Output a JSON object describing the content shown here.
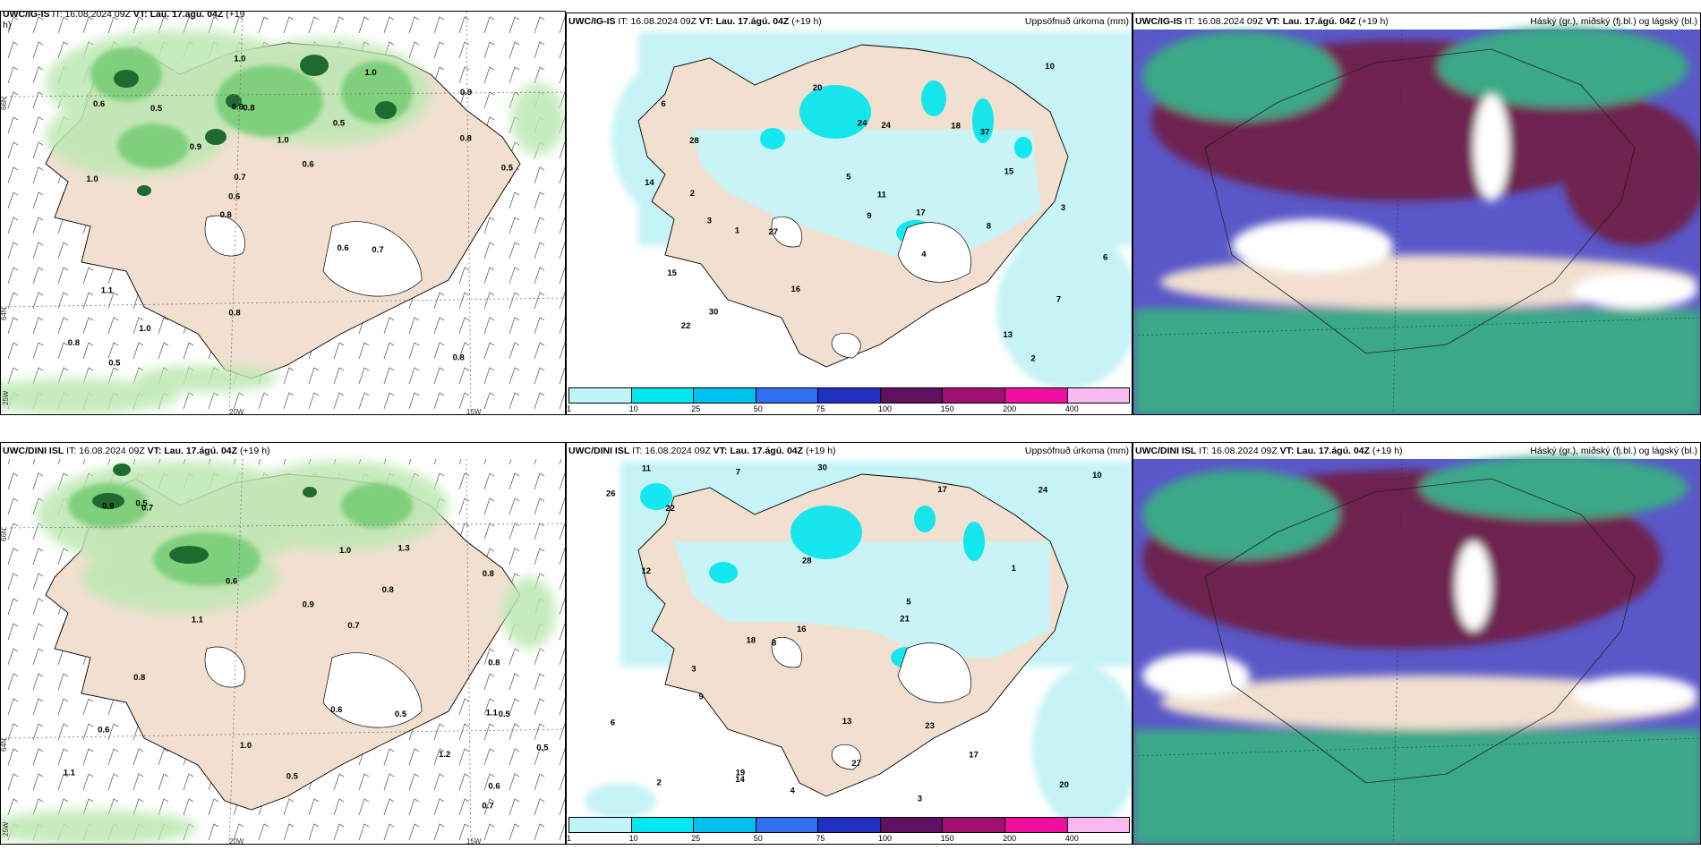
{
  "panels": {
    "p1": {
      "model": "UWC/IG-IS",
      "it_label": "IT:",
      "it": "16.08.2024 09Z",
      "vt_label": "VT:",
      "vt": "Lau. 17.ágú. 04Z",
      "lead": "(+19",
      "lead2": "h)"
    },
    "p2": {
      "model": "UWC/IG-IS",
      "it_label": "IT:",
      "it": "16.08.2024 09Z",
      "vt_label": "VT:",
      "vt": "Lau. 17.ágú. 04Z",
      "lead": "(+19 h)",
      "right_title": "Uppsöfnuð úrkoma (mm)"
    },
    "p3": {
      "model": "UWC/IG-IS",
      "it_label": "IT:",
      "it": "16.08.2024 09Z",
      "vt_label": "VT:",
      "vt": "Lau. 17.ágú. 04Z",
      "lead": "(+19 h)",
      "right_title": "Háský (gr.), miðský (fj.bl.) og lágský (bl.)"
    },
    "p4": {
      "model": "UWC/DINI ISL",
      "it_label": "IT:",
      "it": "16.08.2024 09Z",
      "vt_label": "VT:",
      "vt": "Lau. 17.ágú. 04Z",
      "lead": "(+19 h)"
    },
    "p5": {
      "model": "UWC/DINI ISL",
      "it_label": "IT:",
      "it": "16.08.2024 09Z",
      "vt_label": "VT:",
      "vt": "Lau. 17.ágú. 04Z",
      "lead": "(+19 h)",
      "right_title": "Uppsöfnuð úrkoma (mm)"
    },
    "p6": {
      "model": "UWC/DINI ISL",
      "it_label": "IT:",
      "it": "16.08.2024 09Z",
      "vt_label": "VT:",
      "vt": "Lau. 17.ágú. 04Z",
      "lead": "(+19 h)",
      "right_title": "Háský (gr.), miðský (fj.bl.) og lágský (bl.)"
    }
  },
  "grid_labels": {
    "lat66": "66N",
    "lat64": "64N",
    "lon20": "20W",
    "lon15": "15W",
    "lon25": "25W"
  },
  "colorbar": {
    "labels": [
      "1",
      "10",
      "25",
      "50",
      "75",
      "100",
      "150",
      "200",
      "400"
    ],
    "colors": [
      "#bff5f8",
      "#00e8f0",
      "#00c0f0",
      "#3070f0",
      "#2030c0",
      "#601060",
      "#a01070",
      "#f010a0",
      "#f8b8f0"
    ]
  },
  "colors": {
    "land": "#f1e0d0",
    "sea": "#ffffff",
    "precip_light": "#c6f3f6",
    "precip_mid": "#00e6ee",
    "green_light": "#bde8b3",
    "green_mid": "#7fcf7c",
    "green_dark": "#1f6b2f",
    "high_cloud": "#6d2050",
    "mid_cloud": "#5550c8",
    "low_cloud": "#3aa888"
  },
  "p1_values": [
    "0.8",
    "1.0",
    "0.9",
    "0.8",
    "0.5",
    "0.5",
    "0.8",
    "1.0",
    "1.1",
    "0.9",
    "0.8",
    "1.0",
    "0.8",
    "0.6",
    "0.7",
    "0.6",
    "1.0",
    "0.5",
    "0.6",
    "0.8",
    "0.6",
    "0.8",
    "0.7",
    "0.5",
    "1.0"
  ],
  "p2_values": [
    "2",
    "3",
    "4",
    "6",
    "7",
    "28",
    "30",
    "27",
    "37",
    "24",
    "18",
    "13",
    "16",
    "20",
    "17",
    "15",
    "8",
    "11",
    "14",
    "22",
    "10",
    "24",
    "15",
    "6",
    "3",
    "2",
    "1",
    "9",
    "5"
  ],
  "p4_values": [
    "0.6",
    "0.7",
    "1.1",
    "0.5",
    "1.0",
    "1.2",
    "0.9",
    "0.8",
    "0.5",
    "1.1",
    "0.7",
    "0.6",
    "0.8",
    "0.5",
    "0.9",
    "1.0",
    "0.7",
    "0.8",
    "0.6",
    "0.5",
    "0.8",
    "1.3",
    "1.1",
    "0.6",
    "0.5"
  ],
  "p5_values": [
    "4",
    "3",
    "19",
    "17",
    "7",
    "22",
    "18",
    "20",
    "30",
    "28",
    "24",
    "27",
    "16",
    "13",
    "17",
    "21",
    "12",
    "14",
    "8",
    "26",
    "23",
    "10",
    "5",
    "2",
    "1",
    "3",
    "6",
    "9",
    "11"
  ]
}
